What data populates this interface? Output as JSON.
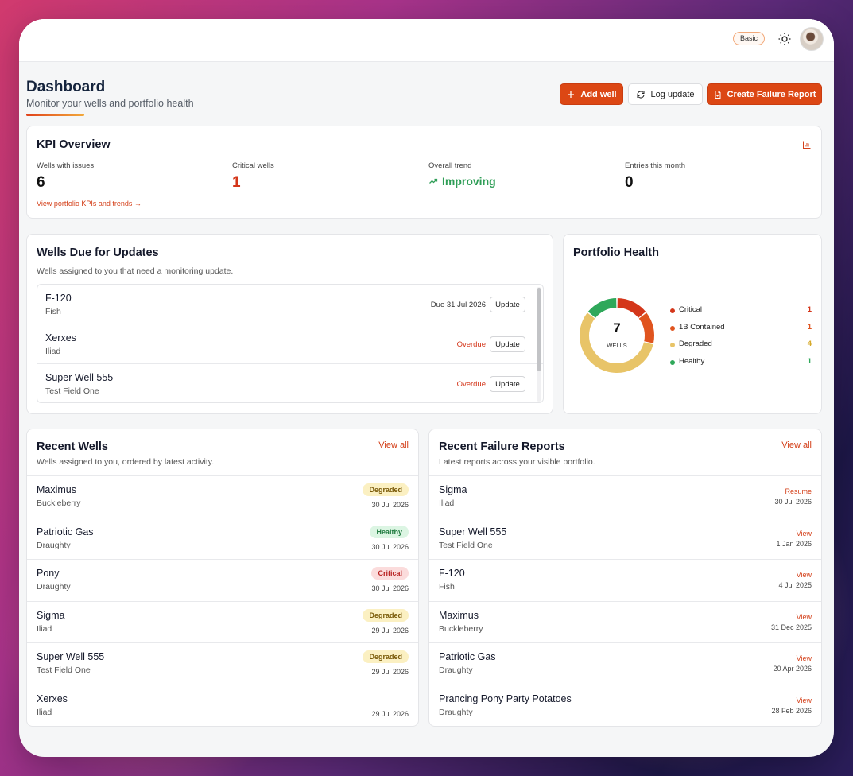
{
  "topbar": {
    "plan_label": "Basic",
    "theme_icon": "sun-icon",
    "avatar_icon": "user-avatar"
  },
  "header": {
    "title": "Dashboard",
    "subtitle": "Monitor your wells and portfolio health",
    "add_well_label": "Add well",
    "log_update_label": "Log update",
    "create_report_label": "Create Failure Report"
  },
  "colors": {
    "accent": "#dc4714",
    "critical": "#d4361a",
    "contained": "#e0541f",
    "degraded": "#e8c468",
    "healthy": "#2fa85a"
  },
  "kpi": {
    "title": "KPI Overview",
    "wells_issues_label": "Wells with issues",
    "wells_issues_value": "6",
    "critical_label": "Critical wells",
    "critical_value": "1",
    "trend_label": "Overall trend",
    "trend_value": "Improving",
    "entries_label": "Entries this month",
    "entries_value": "0",
    "link": "View portfolio KPIs and trends →"
  },
  "due": {
    "title": "Wells Due for Updates",
    "subtitle": "Wells assigned to you that need a monitoring update.",
    "button_label": "Update",
    "rows": [
      {
        "name": "F-120",
        "field": "Fish",
        "status": "Due 31 Jul 2026",
        "overdue": false
      },
      {
        "name": "Xerxes",
        "field": "Iliad",
        "status": "Overdue",
        "overdue": true
      },
      {
        "name": "Super Well 555",
        "field": "Test Field One",
        "status": "Overdue",
        "overdue": true
      }
    ]
  },
  "health": {
    "title": "Portfolio Health",
    "total": "7",
    "total_label": "WELLS",
    "legend": [
      {
        "label": "Critical",
        "value": 1,
        "display": "1",
        "color": "#d4361a"
      },
      {
        "label": "1B Contained",
        "value": 1,
        "display": "1",
        "color": "#e0541f"
      },
      {
        "label": "Degraded",
        "value": 4,
        "display": "4",
        "color": "#e8c468"
      },
      {
        "label": "Healthy",
        "value": 1,
        "display": "1",
        "color": "#2fa85a"
      }
    ]
  },
  "recent_wells": {
    "title": "Recent Wells",
    "subtitle": "Wells assigned to you, ordered by latest activity.",
    "view_all": "View all",
    "rows": [
      {
        "name": "Maximus",
        "field": "Buckleberry",
        "badge": "Degraded",
        "date": "30 Jul 2026"
      },
      {
        "name": "Patriotic Gas",
        "field": "Draughty",
        "badge": "Healthy",
        "date": "30 Jul 2026"
      },
      {
        "name": "Pony",
        "field": "Draughty",
        "badge": "Critical",
        "date": "30 Jul 2026"
      },
      {
        "name": "Sigma",
        "field": "Iliad",
        "badge": "Degraded",
        "date": "29 Jul 2026"
      },
      {
        "name": "Super Well 555",
        "field": "Test Field One",
        "badge": "Degraded",
        "date": "29 Jul 2026"
      },
      {
        "name": "Xerxes",
        "field": "Iliad",
        "badge": "",
        "date": "29 Jul 2026"
      }
    ]
  },
  "recent_reports": {
    "title": "Recent Failure Reports",
    "subtitle": "Latest reports across your visible portfolio.",
    "view_all": "View all",
    "rows": [
      {
        "name": "Sigma",
        "field": "Iliad",
        "action": "Resume",
        "date": "30 Jul 2026"
      },
      {
        "name": "Super Well 555",
        "field": "Test Field One",
        "action": "View",
        "date": "1 Jan 2026"
      },
      {
        "name": "F-120",
        "field": "Fish",
        "action": "View",
        "date": "4 Jul 2025"
      },
      {
        "name": "Maximus",
        "field": "Buckleberry",
        "action": "View",
        "date": "31 Dec 2025"
      },
      {
        "name": "Patriotic Gas",
        "field": "Draughty",
        "action": "View",
        "date": "20 Apr 2026"
      },
      {
        "name": "Prancing Pony Party Potatoes",
        "field": "Draughty",
        "action": "View",
        "date": "28 Feb 2026"
      }
    ]
  }
}
